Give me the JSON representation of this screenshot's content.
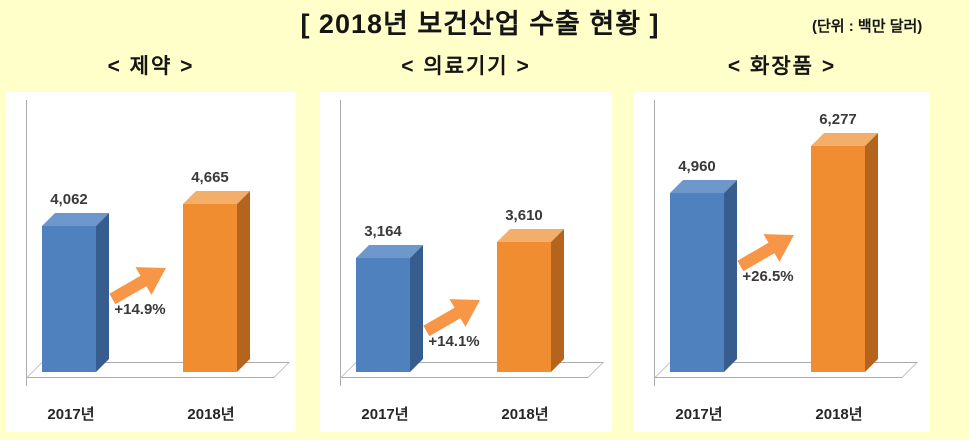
{
  "page": {
    "title": "[ 2018년 보건산업 수출 현황 ]",
    "unit_note": "(단위 : 백만 달러)"
  },
  "chart_data": {
    "type": "bar",
    "style": "3d-bar",
    "title": "2018년 보건산업 수출 현황",
    "unit": "백만 달러",
    "categories": [
      "2017년",
      "2018년"
    ],
    "ylim": [
      0,
      7000
    ],
    "grid": false,
    "legend": false,
    "charts": [
      {
        "title": "< 제약 >",
        "values": [
          4062,
          4665
        ],
        "value_labels": [
          "4,062",
          "4,665"
        ],
        "growth_label": "+14.9%"
      },
      {
        "title": "< 의료기기 >",
        "values": [
          3164,
          3610
        ],
        "value_labels": [
          "3,164",
          "3,610"
        ],
        "growth_label": "+14.1%"
      },
      {
        "title": "< 화장품 >",
        "values": [
          4960,
          6277
        ],
        "value_labels": [
          "4,960",
          "6,277"
        ],
        "growth_label": "+26.5%"
      }
    ],
    "colors": {
      "series_2017": "#4E81BD",
      "series_2018": "#EF8D30",
      "arrow": "#F79646",
      "background": "#FFFFC9",
      "panel_background": "#FFFFFF"
    }
  }
}
